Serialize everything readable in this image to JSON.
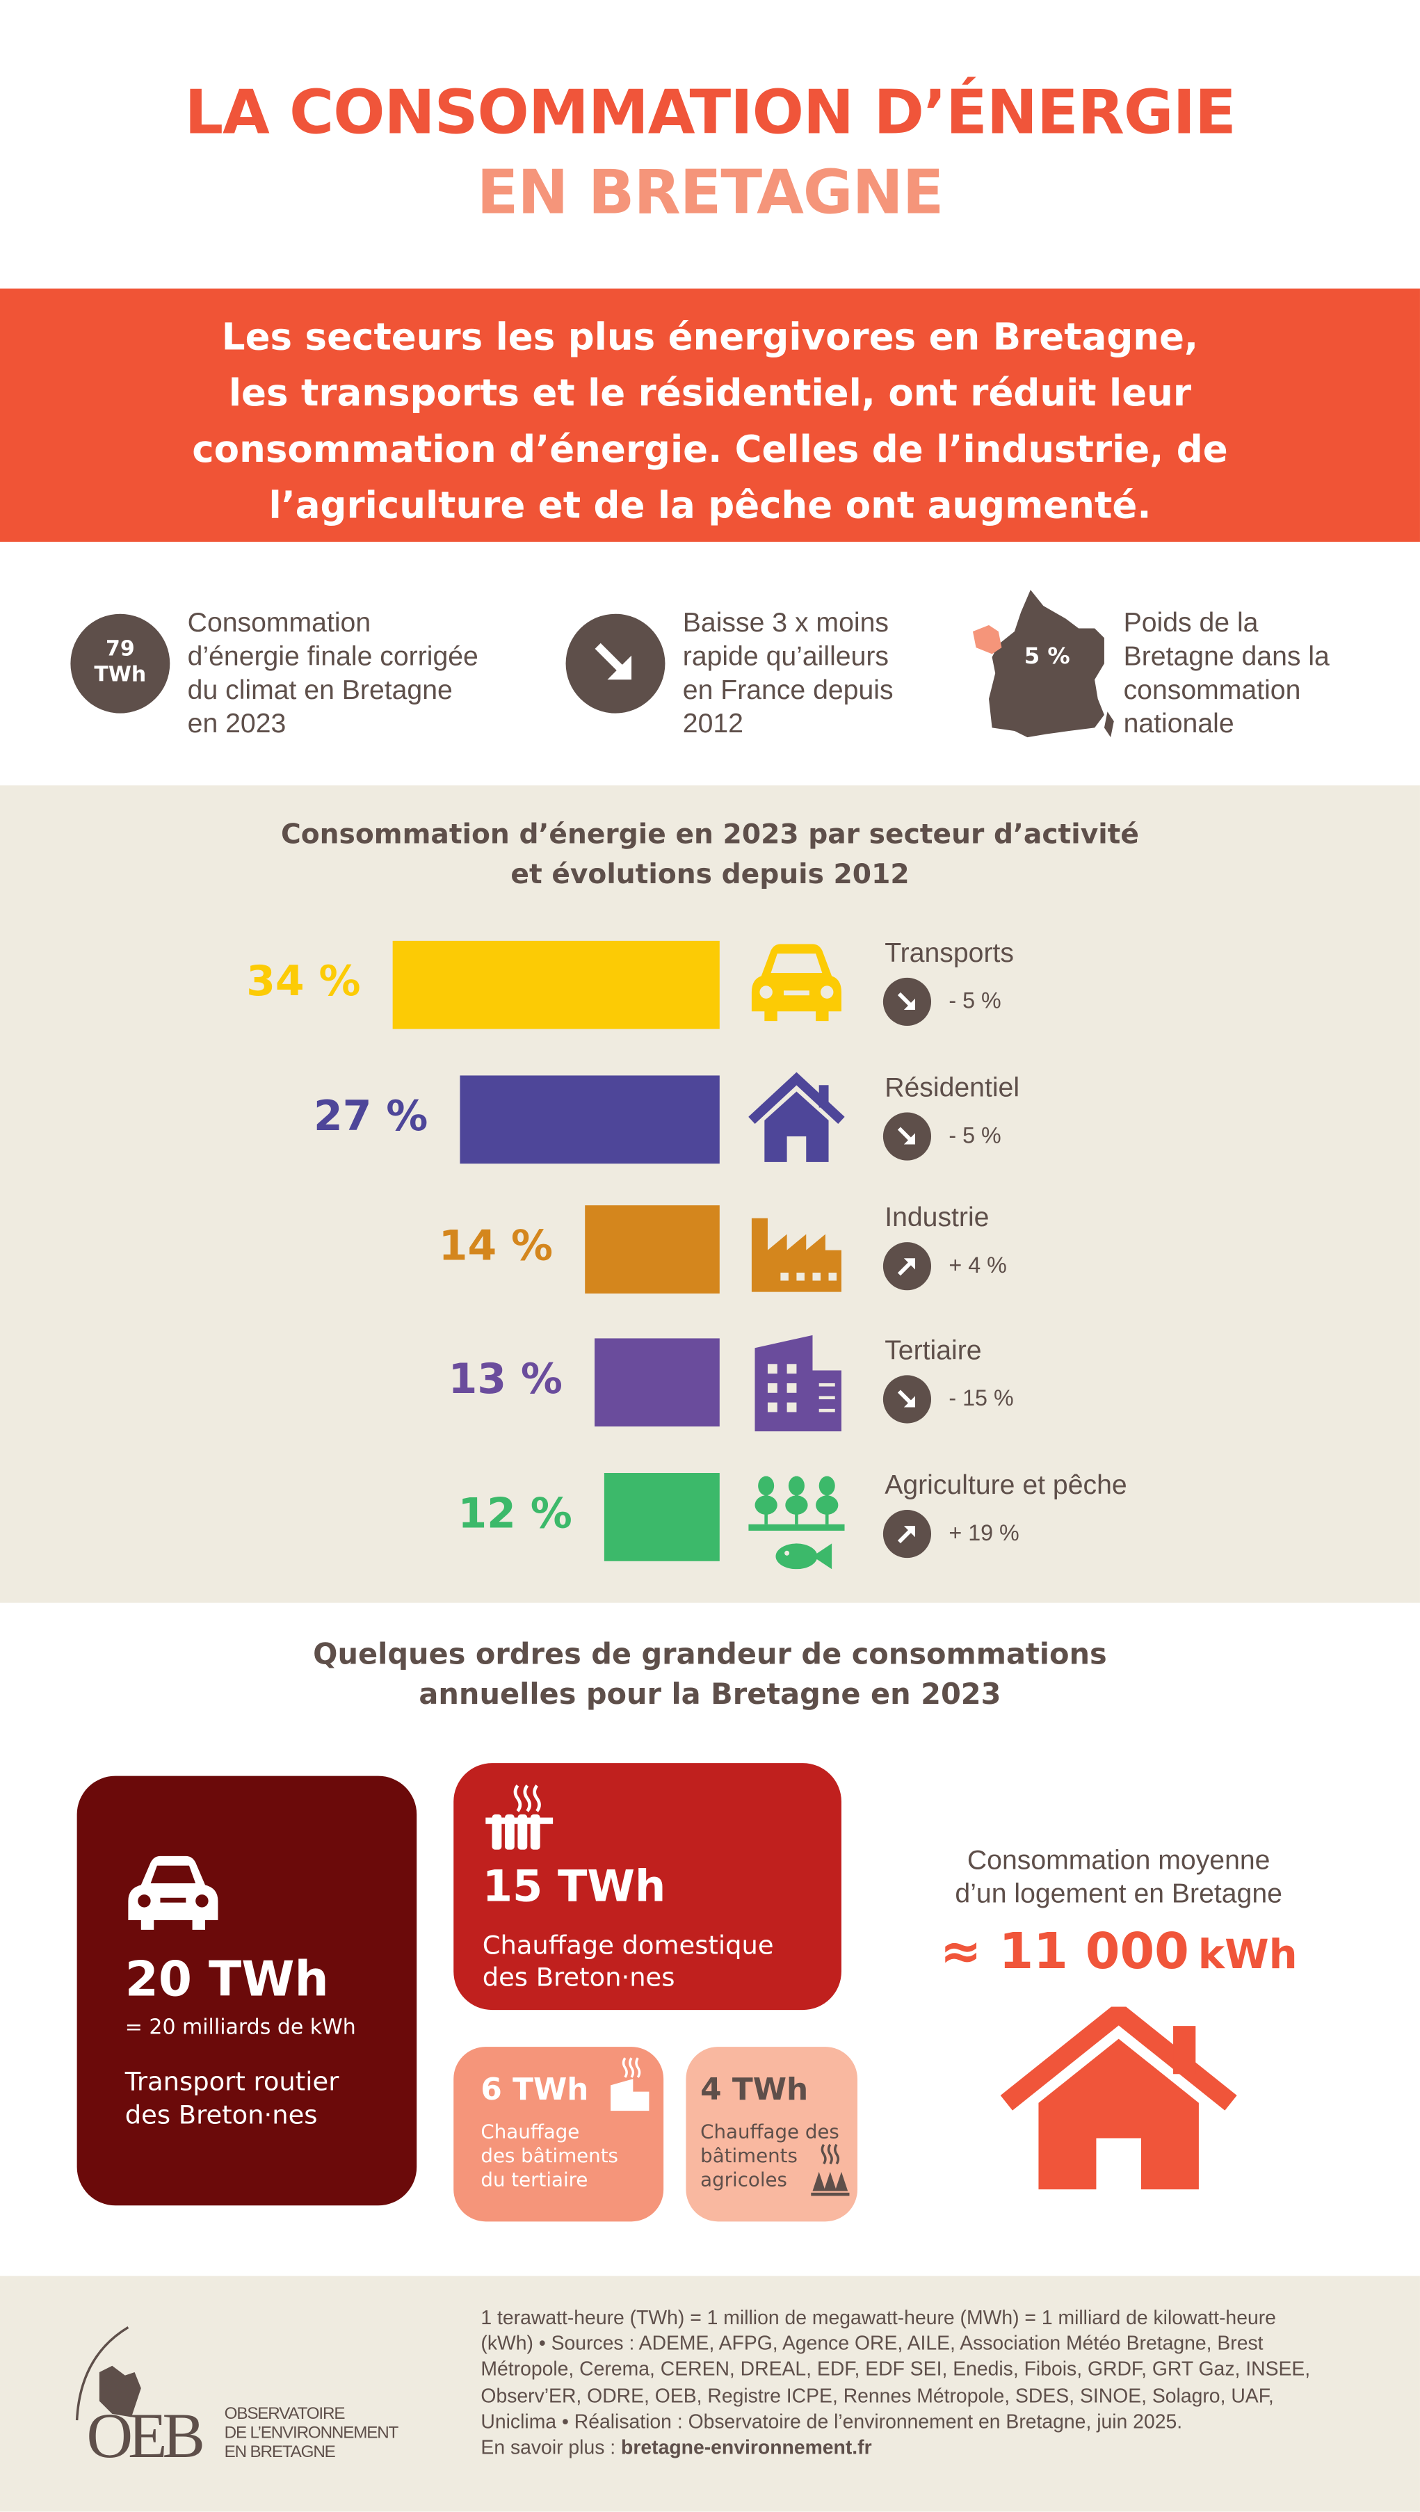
{
  "title": {
    "line1": "LA CONSOMMATION D’ÉNERGIE",
    "line2": "EN BRETAGNE"
  },
  "banner": {
    "lines": [
      "Les secteurs les plus énergivores en Bretagne,",
      "les transports et le résidentiel, ont réduit leur",
      "consommation d’énergie. Celles de l’industrie, de",
      "l’agriculture et de la pêche ont augmenté."
    ]
  },
  "stats": [
    {
      "badge1": "79",
      "badge2": "TWh",
      "lines": [
        "Consommation",
        "d’énergie finale corrigée",
        "du climat en Bretagne",
        "en 2023"
      ]
    },
    {
      "icon": "arrow-down-right-icon",
      "lines": [
        "Baisse 3 x moins",
        "rapide qu’ailleurs",
        "en France depuis",
        "2012"
      ]
    },
    {
      "badge": "5 %",
      "icon": "france-map-icon",
      "lines": [
        "Poids de la",
        "Bretagne dans la",
        "consommation",
        "nationale"
      ]
    }
  ],
  "chart_data": {
    "type": "bar",
    "title": "Consommation d’énergie en 2023 par secteur d’activité",
    "subtitle": "et évolutions depuis 2012",
    "categories": [
      "Transports",
      "Résidentiel",
      "Industrie",
      "Tertiaire",
      "Agriculture et pêche"
    ],
    "values": [
      34,
      27,
      14,
      13,
      12
    ],
    "labels": [
      "34 %",
      "27 %",
      "14 %",
      "13 %",
      "12 %"
    ],
    "changes": [
      "- 5 %",
      "- 5 %",
      "+ 4 %",
      "- 15 %",
      "+ 19 %"
    ],
    "trend": [
      "down",
      "down",
      "up",
      "down",
      "up"
    ],
    "icons": [
      "car-icon",
      "house-icon",
      "factory-icon",
      "office-building-icon",
      "crops-fish-icon"
    ],
    "colors": [
      "#fccb05",
      "#4e4699",
      "#d4861d",
      "#6a4c9c",
      "#3cb96a"
    ]
  },
  "orders": {
    "title1": "Quelques ordres de grandeur de consommations",
    "title2": "annuelles pour la Bretagne en 2023",
    "transport": {
      "value": "20 TWh",
      "sub": "= 20 milliards de kWh",
      "l1": "Transport routier",
      "l2": "des Breton·nes",
      "color": "#6b0a0a"
    },
    "domestic": {
      "value": "15 TWh",
      "l1": "Chauffage domestique",
      "l2": "des Breton·nes",
      "color": "#c0201e"
    },
    "tertiary": {
      "value": "6 TWh",
      "l1": "Chauffage",
      "l2": "des bâtiments",
      "l3": "du tertiaire",
      "color": "#f5957a"
    },
    "agri": {
      "value": "4 TWh",
      "l1": "Chauffage des",
      "l2": "bâtiments",
      "l3": "agricoles",
      "color": "#f9b8a0"
    },
    "home": {
      "l1": "Consommation moyenne",
      "l2": "d’un logement en Bretagne",
      "value": "≈ 11 000",
      "unit": "kWh"
    }
  },
  "footer": {
    "logo": {
      "acronym": "OEB",
      "l1": "OBSERVATOIRE",
      "l2": "DE L’ENVIRONNEMENT",
      "l3": "EN BRETAGNE"
    },
    "lines": [
      "1 terawatt-heure (TWh) = 1 million de megawatt-heure (MWh) = 1 milliard de kilowatt-heure",
      "(kWh) • Sources : ADEME, AFPG, Agence ORE, AILE, Association Météo Bretagne, Brest",
      "Métropole, Cerema, CEREN, DREAL, EDF, EDF SEI, Enedis, Fibois, GRDF, GRT Gaz, INSEE,",
      "Observ’ER, ODRE, OEB, Registre ICPE, Rennes Métropole, SDES, SINOE, Solagro, UAF,",
      "Uniclima • Réalisation : Observatoire de l’environnement en Bretagne, juin 2025."
    ],
    "more_label": "En savoir plus : ",
    "more_link": "bretagne-environnement.fr"
  }
}
